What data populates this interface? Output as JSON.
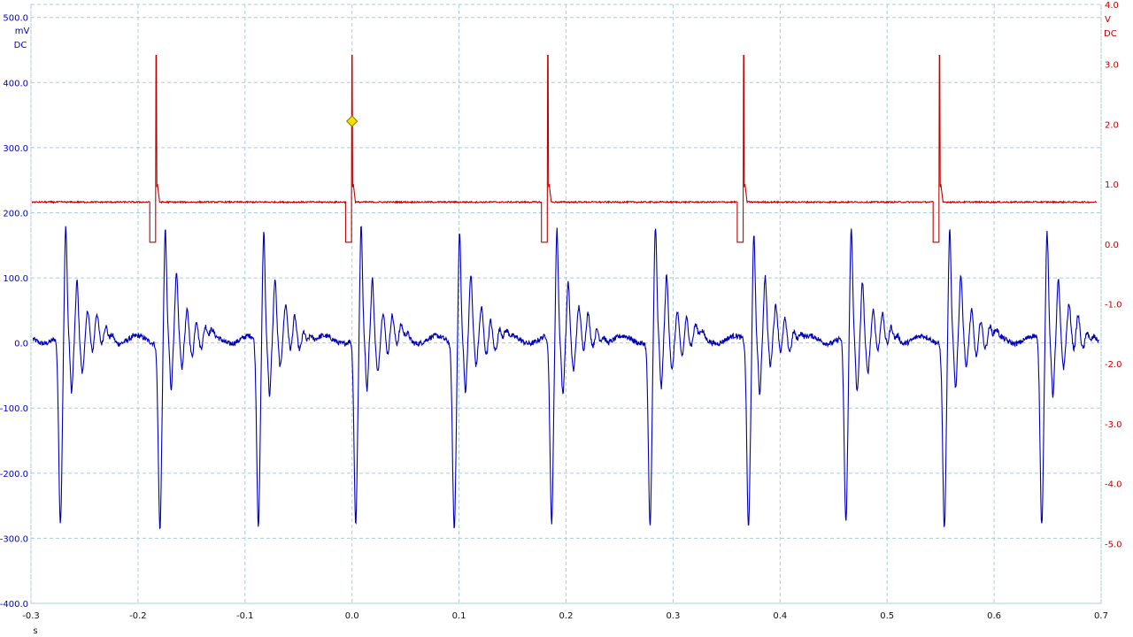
{
  "chart_data": {
    "type": "line",
    "title": "",
    "xlabel": "s",
    "xlim": [
      -0.3,
      0.7
    ],
    "x_ticks": [
      "-0.3",
      "-0.2",
      "-0.1",
      "0.0",
      "0.1",
      "0.2",
      "0.3",
      "0.4",
      "0.5",
      "0.6",
      "0.7"
    ],
    "grid": true,
    "left_axis": {
      "unit": "mV",
      "coupling": "DC",
      "color": "#0000b8",
      "ylim": [
        -400,
        520
      ],
      "ticks": [
        "500.0",
        "400.0",
        "300.0",
        "200.0",
        "100.0",
        "0.0",
        "-100.0",
        "-200.0",
        "-300.0",
        "-400.0"
      ]
    },
    "right_axis": {
      "unit": "V",
      "coupling": "DC",
      "color": "#c00000",
      "ylim": [
        -6.0,
        4.0
      ],
      "ticks": [
        "4.0",
        "3.0",
        "2.0",
        "1.0",
        "0.0",
        "-1.0",
        "-2.0",
        "-3.0",
        "-4.0",
        "-5.0"
      ]
    },
    "series": [
      {
        "axis": "left",
        "color": "#0000b8",
        "unit": "mV",
        "period_s": 0.0915,
        "cycle_starts_s": [
          -0.276,
          -0.183,
          -0.091,
          0.0,
          0.092,
          0.183,
          0.275,
          0.367,
          0.458,
          0.55,
          0.641
        ],
        "baseline_mV": 5,
        "negative_peak_mV": -285,
        "positive_peak_mV": 170,
        "rebound_peak_mV": 95
      },
      {
        "axis": "right",
        "color": "#c00000",
        "unit": "V",
        "baseline_V": 0.7,
        "low_V": 0.03,
        "spike_peak_V": 3.15,
        "pulse_times_s": [
          -0.183,
          0.0,
          0.183,
          0.366,
          0.549
        ],
        "pulse_low_width_s": 0.006
      }
    ],
    "trigger_marker": {
      "time_s": 0.0,
      "value_V": 2.05,
      "color": "#f0e000"
    }
  }
}
